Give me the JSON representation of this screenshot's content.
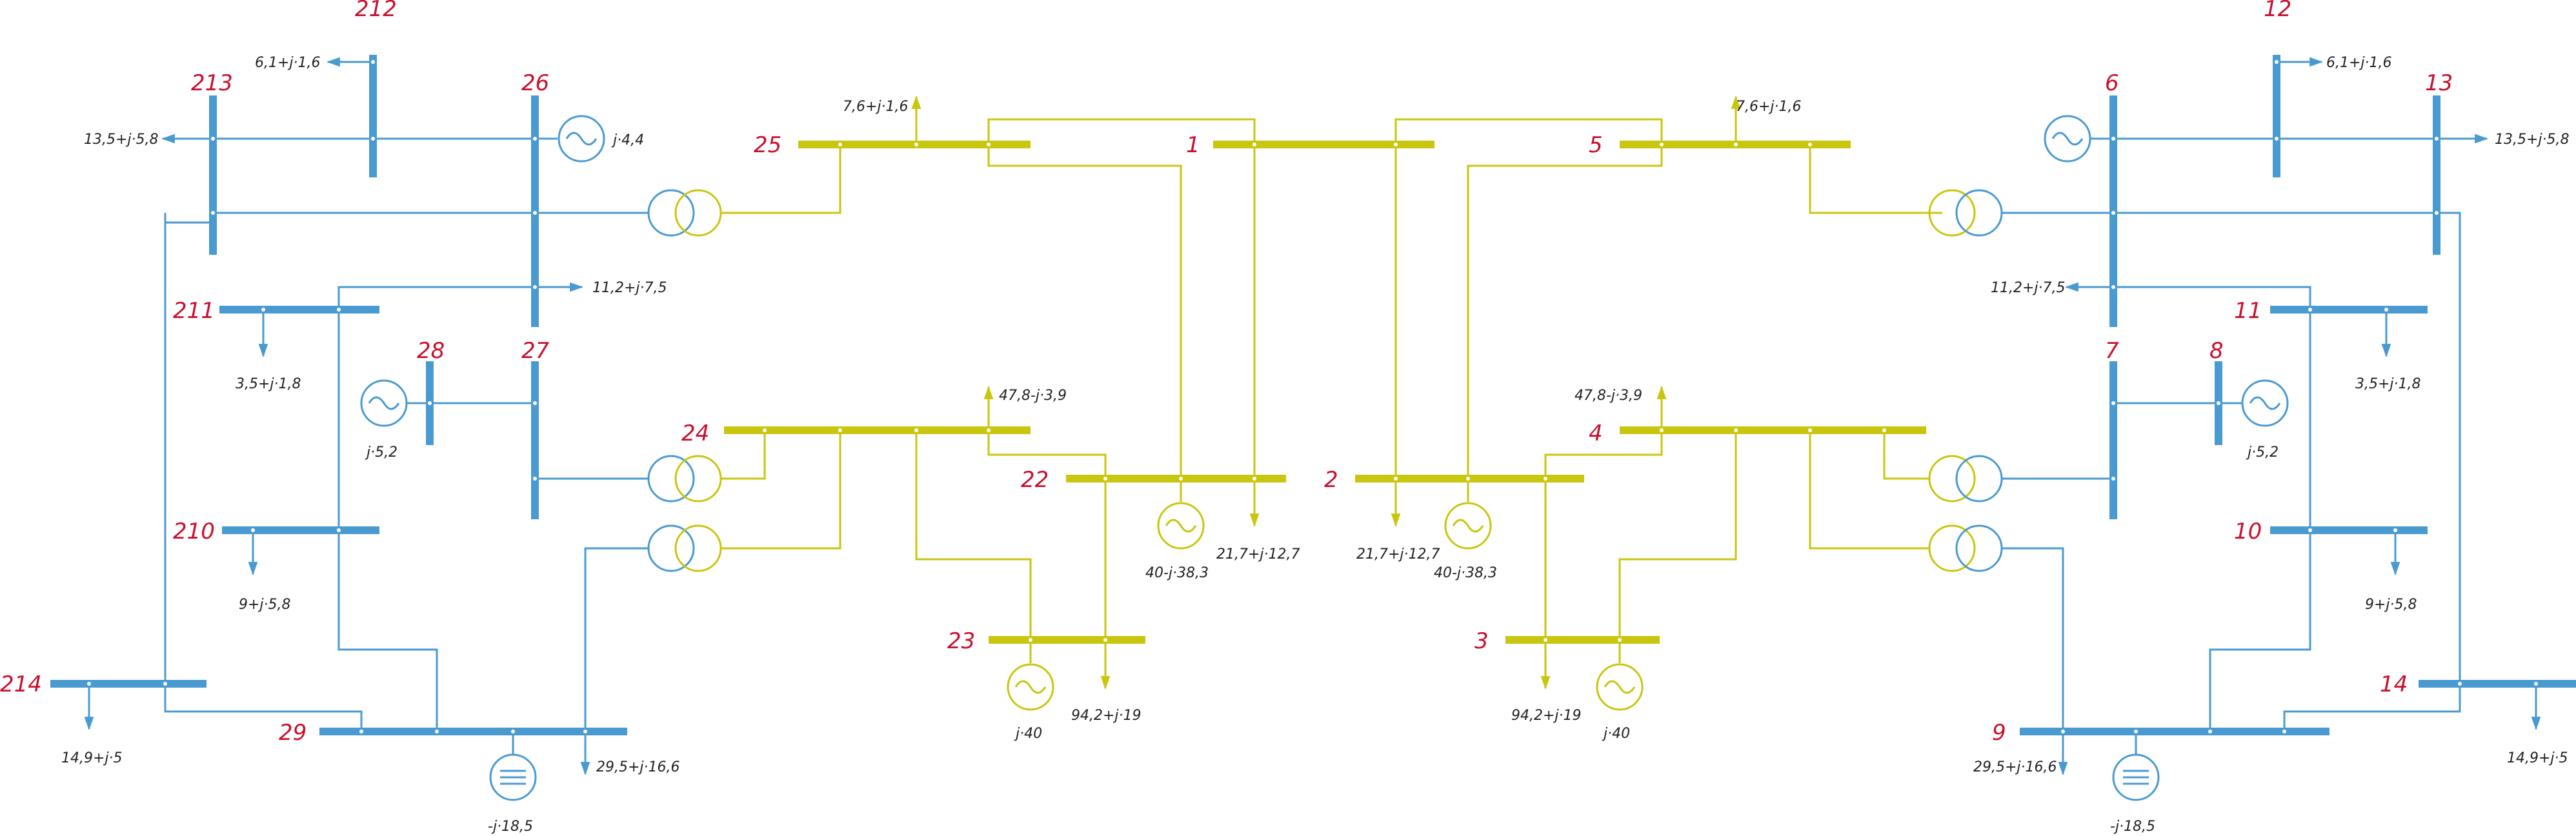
{
  "colors": {
    "blue": "#4a9ad2",
    "yellow": "#c9c60f",
    "label_red": "#c8102e",
    "text": "#222222"
  },
  "bus_numbers": {
    "b212": "212",
    "b213": "213",
    "b26": "26",
    "b25": "25",
    "b211": "211",
    "b28": "28",
    "b27": "27",
    "b24": "24",
    "b22": "22",
    "b210": "210",
    "b23": "23",
    "b214": "214",
    "b29": "29",
    "b1": "1",
    "b5": "5",
    "b2": "2",
    "b4": "4",
    "b3": "3",
    "b12": "12",
    "b6": "6",
    "b13": "13",
    "b11": "11",
    "b7": "7",
    "b8": "8",
    "b10": "10",
    "b14": "14",
    "b9": "9"
  },
  "labels": {
    "load_212": "6,1+j·1,6",
    "load_213": "13,5+j·5,8",
    "gen_26": "j·4,4",
    "load_25": "7,6+j·1,6",
    "load_26": "11,2+j·7,5",
    "load_211": "3,5+j·1,8",
    "gen_28": "j·5,2",
    "load_24": "47,8-j·3,9",
    "load_22": "21,7+j·12,7",
    "gen_22": "40-j·38,3",
    "load_210": "9+j·5,8",
    "load_23": "94,2+j·19",
    "gen_23": "j·40",
    "load_214": "14,9+j·5",
    "load_29": "29,5+j·16,6",
    "comp_29": "-j·18,5",
    "load_5": "7,6+j·1,6",
    "load_2": "21,7+j·12,7",
    "gen_2": "40-j·38,3",
    "load_4": "47,8-j·3,9",
    "load_3": "94,2+j·19",
    "gen_3": "j·40",
    "load_12": "6,1+j·1,6",
    "load_13": "13,5+j·5,8",
    "load_6": "11,2+j·7,5",
    "load_11": "3,5+j·1,8",
    "gen_8": "j·5,2",
    "load_10": "9+j·5,8",
    "load_14": "14,9+j·5",
    "load_9": "29,5+j·16,6",
    "comp_9": "-j·18,5"
  }
}
